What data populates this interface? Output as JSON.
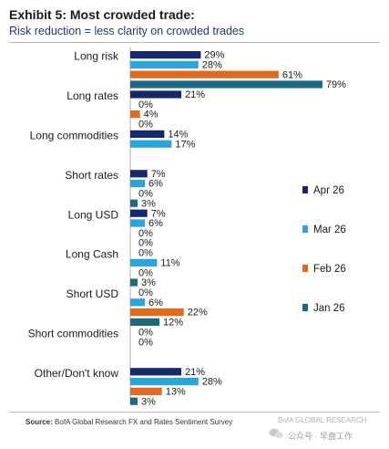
{
  "header": {
    "title": "Exhibit 5: Most crowded trade:",
    "subtitle": "Risk reduction = less clarity on crowded trades"
  },
  "footer": {
    "source_label": "Source:",
    "source_text": "BofA Global Research FX and Rates Sentiment Survey",
    "watermark_brand": "BofA GLOBAL RESEARCH",
    "watermark_text": "公众号 · 早盘工作"
  },
  "colors": {
    "Apr 26": "#14286b",
    "Mar 26": "#2aa4dd",
    "Feb 26": "#e06b1f",
    "Jan 26": "#1b6a80"
  },
  "chart_data": {
    "type": "bar",
    "orientation": "horizontal",
    "categories": [
      "Long risk",
      "Long rates",
      "Long commodities",
      "Short rates",
      "Long USD",
      "Long Cash",
      "Short USD",
      "Short commodities",
      "Other/Don't know"
    ],
    "series": [
      {
        "name": "Apr 26",
        "values": [
          29,
          21,
          14,
          7,
          7,
          0,
          0,
          0,
          21
        ]
      },
      {
        "name": "Mar 26",
        "values": [
          28,
          0,
          17,
          6,
          6,
          11,
          6,
          0,
          28
        ]
      },
      {
        "name": "Feb 26",
        "values": [
          61,
          4,
          null,
          0,
          0,
          0,
          22,
          null,
          13
        ]
      },
      {
        "name": "Jan 26",
        "values": [
          79,
          0,
          null,
          3,
          0,
          3,
          12,
          null,
          3
        ]
      }
    ],
    "value_suffix": "%",
    "xlim": [
      0,
      100
    ],
    "legend_position": "right",
    "grid": false
  }
}
